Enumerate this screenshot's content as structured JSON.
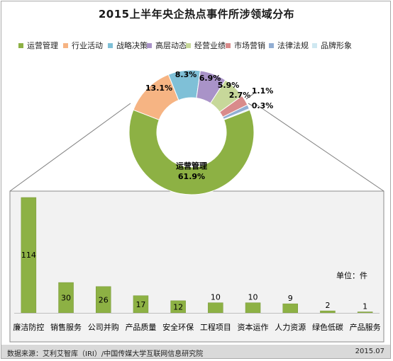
{
  "title": "2015上半年央企热点事件所涉领域分布",
  "colors": {
    "bar": "#8db144",
    "bar_edge": "#78983a",
    "panel_bg": "#f2f2f2",
    "panel_border": "#8c8c8c",
    "connector": "#7f7f7f",
    "footer_bg": "#d9d9d9"
  },
  "chart_data": [
    {
      "type": "pie",
      "variant": "doughnut",
      "legend_position": "top",
      "categories": [
        "运营管理",
        "行业活动",
        "战略决策",
        "高层动态",
        "经营业绩",
        "市场营销",
        "法律法规",
        "品牌形象"
      ],
      "values": [
        61.9,
        13.1,
        8.3,
        6.9,
        5.9,
        2.7,
        1.1,
        0.3
      ],
      "labels": [
        "61.9%",
        "13.1%",
        "8.3%",
        "6.9%",
        "5.9%",
        "2.7%",
        "1.1%",
        "0.3%"
      ],
      "colors": [
        "#8db144",
        "#f6b483",
        "#7fc0d7",
        "#a993c8",
        "#c7d89a",
        "#d98b8b",
        "#92aed3",
        "#cfe8f1"
      ],
      "center_category_label": "运营管理"
    },
    {
      "type": "bar",
      "title": "",
      "categories": [
        "廉洁防控",
        "销售服务",
        "公司并购",
        "产品质量",
        "安全环保",
        "工程项目",
        "资本运作",
        "人力资源",
        "绿色低碳",
        "产品服务"
      ],
      "values": [
        114,
        30,
        26,
        17,
        12,
        10,
        10,
        9,
        2,
        1
      ],
      "unit_label": "单位：件",
      "ylim": [
        0,
        114
      ],
      "grid": false
    }
  ],
  "footer": {
    "source": "数据来源：艾利艾智库（IRI）/中国传媒大学互联网信息研究院",
    "date": "2015.07"
  }
}
